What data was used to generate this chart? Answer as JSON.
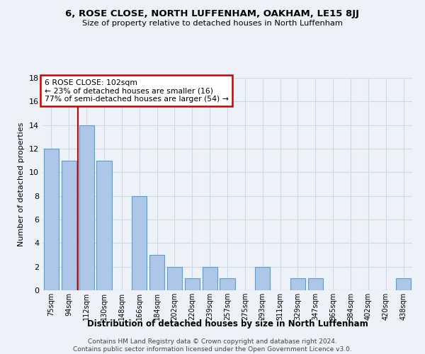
{
  "title": "6, ROSE CLOSE, NORTH LUFFENHAM, OAKHAM, LE15 8JJ",
  "subtitle": "Size of property relative to detached houses in North Luffenham",
  "xlabel": "Distribution of detached houses by size in North Luffenham",
  "ylabel": "Number of detached properties",
  "categories": [
    "75sqm",
    "94sqm",
    "112sqm",
    "130sqm",
    "148sqm",
    "166sqm",
    "184sqm",
    "202sqm",
    "220sqm",
    "239sqm",
    "257sqm",
    "275sqm",
    "293sqm",
    "311sqm",
    "329sqm",
    "347sqm",
    "365sqm",
    "384sqm",
    "402sqm",
    "420sqm",
    "438sqm"
  ],
  "values": [
    12,
    11,
    14,
    11,
    0,
    8,
    3,
    2,
    1,
    2,
    1,
    0,
    2,
    0,
    1,
    1,
    0,
    0,
    0,
    0,
    1
  ],
  "bar_color": "#aec6e8",
  "bar_edge_color": "#5a9fd4",
  "annotation_text": "6 ROSE CLOSE: 102sqm\n← 23% of detached houses are smaller (16)\n77% of semi-detached houses are larger (54) →",
  "annotation_box_color": "#ffffff",
  "annotation_box_edge": "#cc0000",
  "red_line_color": "#cc0000",
  "footer": "Contains HM Land Registry data © Crown copyright and database right 2024.\nContains public sector information licensed under the Open Government Licence v3.0.",
  "ylim": [
    0,
    18
  ],
  "yticks": [
    0,
    2,
    4,
    6,
    8,
    10,
    12,
    14,
    16,
    18
  ],
  "grid_color": "#d0d8e8",
  "background_color": "#edf2f9"
}
